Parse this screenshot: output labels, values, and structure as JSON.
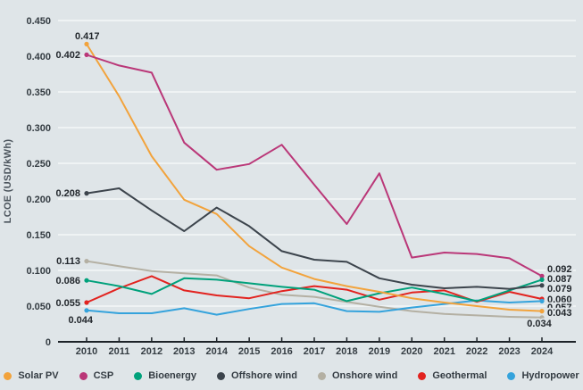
{
  "chart_data": {
    "type": "line",
    "title": "",
    "xlabel": "",
    "ylabel": "LCOE (USD/kWh)",
    "x": [
      2010,
      2011,
      2012,
      2013,
      2014,
      2015,
      2016,
      2017,
      2018,
      2019,
      2020,
      2021,
      2022,
      2023,
      2024
    ],
    "ylim": [
      0,
      0.45
    ],
    "y_ticks": [
      {
        "value": 0.45,
        "label": "0.450"
      },
      {
        "value": 0.4,
        "label": "0.400"
      },
      {
        "value": 0.35,
        "label": "0.350"
      },
      {
        "value": 0.3,
        "label": "0.300"
      },
      {
        "value": 0.25,
        "label": "0.250"
      },
      {
        "value": 0.2,
        "label": "0.200"
      },
      {
        "value": 0.15,
        "label": "0.150"
      },
      {
        "value": 0.1,
        "label": "0.100"
      },
      {
        "value": 0.05,
        "label": "0.050"
      },
      {
        "value": 0.0,
        "label": "0"
      }
    ],
    "grid": true,
    "legend_position": "bottom",
    "series": [
      {
        "name": "Solar PV",
        "color": "#F2A33C",
        "values": [
          0.417,
          0.344,
          0.26,
          0.199,
          0.179,
          0.134,
          0.104,
          0.088,
          0.078,
          0.07,
          0.061,
          0.055,
          0.05,
          0.045,
          0.043
        ]
      },
      {
        "name": "CSP",
        "color": "#BA3778",
        "values": [
          0.402,
          0.387,
          0.377,
          0.279,
          0.241,
          0.249,
          0.276,
          0.22,
          0.165,
          0.236,
          0.118,
          0.125,
          0.123,
          0.117,
          0.092
        ]
      },
      {
        "name": "Bioenergy",
        "color": "#00A17B",
        "values": [
          0.086,
          0.078,
          0.067,
          0.089,
          0.087,
          0.082,
          0.077,
          0.073,
          0.057,
          0.068,
          0.076,
          0.067,
          0.057,
          0.072,
          0.087
        ]
      },
      {
        "name": "Offshore wind",
        "color": "#3C444C",
        "values": [
          0.208,
          0.215,
          0.184,
          0.155,
          0.188,
          0.162,
          0.127,
          0.115,
          0.112,
          0.089,
          0.08,
          0.075,
          0.077,
          0.074,
          0.079
        ]
      },
      {
        "name": "Onshore wind",
        "color": "#B4B0A3",
        "values": [
          0.113,
          0.106,
          0.099,
          0.096,
          0.093,
          0.076,
          0.066,
          0.063,
          0.056,
          0.049,
          0.043,
          0.039,
          0.037,
          0.035,
          0.034
        ]
      },
      {
        "name": "Geothermal",
        "color": "#E2231F",
        "values": [
          0.055,
          0.075,
          0.092,
          0.072,
          0.065,
          0.061,
          0.071,
          0.078,
          0.073,
          0.059,
          0.069,
          0.072,
          0.056,
          0.07,
          0.06
        ]
      },
      {
        "name": "Hydropower",
        "color": "#35A3DC",
        "values": [
          0.044,
          0.04,
          0.04,
          0.047,
          0.038,
          0.046,
          0.053,
          0.054,
          0.043,
          0.042,
          0.048,
          0.053,
          0.058,
          0.055,
          0.057
        ]
      }
    ],
    "annotations": {
      "start": [
        {
          "series": "Solar PV",
          "label": "0.417"
        },
        {
          "series": "CSP",
          "label": "0.402"
        },
        {
          "series": "Offshore wind",
          "label": "0.208"
        },
        {
          "series": "Onshore wind",
          "label": "0.113"
        },
        {
          "series": "Bioenergy",
          "label": "0.086"
        },
        {
          "series": "Geothermal",
          "label": "0.055"
        },
        {
          "series": "Hydropower",
          "label": "0.044"
        }
      ],
      "end": [
        {
          "series": "CSP",
          "label": "0.092"
        },
        {
          "series": "Bioenergy",
          "label": "0.087"
        },
        {
          "series": "Offshore wind",
          "label": "0.079"
        },
        {
          "series": "Geothermal",
          "label": "0.060"
        },
        {
          "series": "Hydropower",
          "label": "0.057"
        },
        {
          "series": "Solar PV",
          "label": "0.043"
        },
        {
          "series": "Onshore wind",
          "label": "0.034"
        }
      ]
    }
  },
  "colors": {
    "background": "#DFE5E8",
    "gridline": "#EFF3F4",
    "axis": "#1D2328",
    "tick_text": "#343C42",
    "annotation_text": "#22272C",
    "axis_title_text": "#4B545C"
  }
}
